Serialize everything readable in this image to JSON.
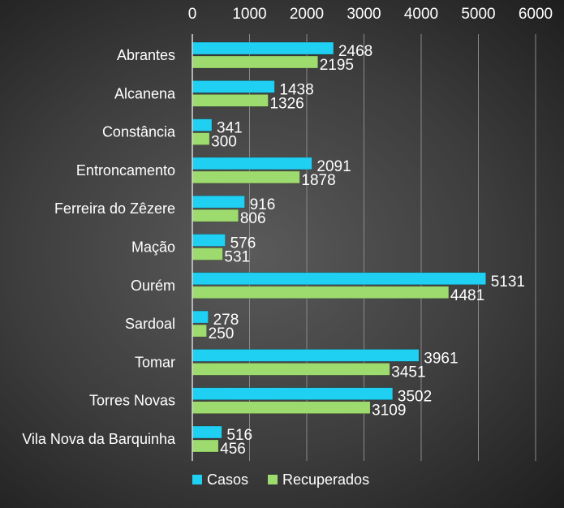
{
  "chart_data": {
    "type": "bar",
    "orientation": "horizontal",
    "categories": [
      "Abrantes",
      "Alcanena",
      "Constância",
      "Entroncamento",
      "Ferreira do Zêzere",
      "Mação",
      "Ourém",
      "Sardoal",
      "Tomar",
      "Torres Novas",
      "Vila Nova da Barquinha"
    ],
    "series": [
      {
        "name": "Casos",
        "color": "#1fd0f2",
        "values": [
          2468,
          1438,
          341,
          2091,
          916,
          576,
          5131,
          278,
          3961,
          3502,
          516
        ]
      },
      {
        "name": "Recuperados",
        "color": "#9edb6f",
        "values": [
          2195,
          1326,
          300,
          1878,
          806,
          531,
          4481,
          250,
          3451,
          3109,
          456
        ]
      }
    ],
    "xlim": [
      0,
      6000
    ],
    "xticks": [
      "0",
      "1000",
      "2000",
      "3000",
      "4000",
      "5000",
      "6000"
    ],
    "grid": true,
    "legend_position": "bottom",
    "title": "",
    "xlabel": "",
    "ylabel": ""
  }
}
